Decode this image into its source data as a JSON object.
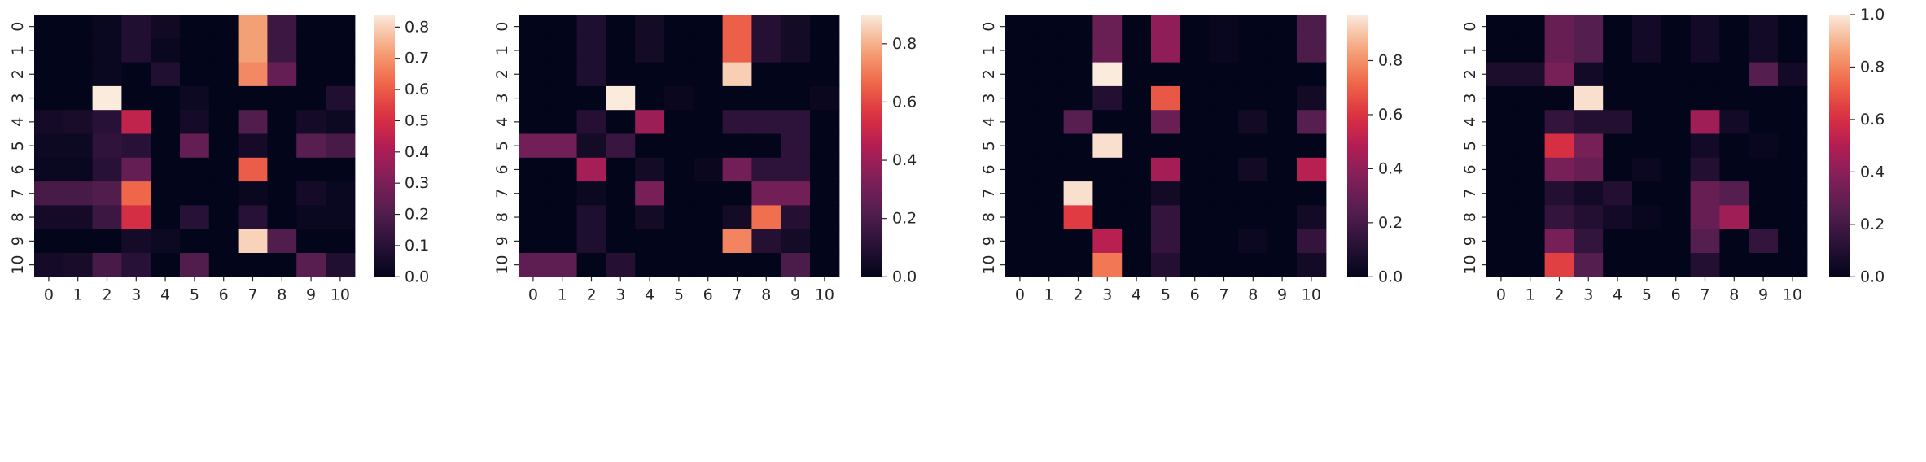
{
  "chart_data": [
    {
      "type": "heatmap",
      "x_ticks": [
        "0",
        "1",
        "2",
        "3",
        "4",
        "5",
        "6",
        "7",
        "8",
        "9",
        "10"
      ],
      "y_ticks": [
        "0",
        "1",
        "2",
        "3",
        "4",
        "5",
        "6",
        "7",
        "8",
        "9",
        "10"
      ],
      "colorbar": {
        "min": 0,
        "max": 0.84,
        "ticks": [
          "0.0",
          "0.1",
          "0.2",
          "0.3",
          "0.4",
          "0.5",
          "0.6",
          "0.7",
          "0.8"
        ],
        "tick_values": [
          0,
          0.1,
          0.2,
          0.3,
          0.4,
          0.5,
          0.6,
          0.7,
          0.8
        ]
      },
      "z": [
        [
          0,
          0,
          0.02,
          0.08,
          0.04,
          0,
          0,
          0.72,
          0.15,
          0,
          0
        ],
        [
          0,
          0,
          0.02,
          0.08,
          0.02,
          0,
          0,
          0.72,
          0.15,
          0,
          0
        ],
        [
          0,
          0,
          0.02,
          0,
          0.08,
          0,
          0,
          0.68,
          0.25,
          0,
          0
        ],
        [
          0,
          0,
          0.84,
          0,
          0,
          0.03,
          0,
          0,
          0,
          0,
          0.08
        ],
        [
          0.05,
          0.06,
          0.1,
          0.45,
          0,
          0.05,
          0,
          0.2,
          0,
          0.05,
          0.03
        ],
        [
          0.03,
          0.03,
          0.12,
          0.1,
          0,
          0.25,
          0,
          0.05,
          0,
          0.22,
          0.18
        ],
        [
          0.02,
          0.02,
          0.1,
          0.25,
          0,
          0,
          0,
          0.6,
          0,
          0,
          0
        ],
        [
          0.18,
          0.18,
          0.2,
          0.62,
          0,
          0,
          0,
          0.02,
          0,
          0.05,
          0.02
        ],
        [
          0.05,
          0.05,
          0.15,
          0.5,
          0,
          0.1,
          0,
          0.1,
          0,
          0.02,
          0.02
        ],
        [
          0,
          0,
          0,
          0.05,
          0.03,
          0,
          0,
          0.8,
          0.2,
          0,
          0
        ],
        [
          0.05,
          0.06,
          0.18,
          0.1,
          0,
          0.2,
          0,
          0,
          0,
          0.22,
          0.08
        ]
      ]
    },
    {
      "type": "heatmap",
      "x_ticks": [
        "0",
        "1",
        "2",
        "3",
        "4",
        "5",
        "6",
        "7",
        "8",
        "9",
        "10"
      ],
      "y_ticks": [
        "0",
        "1",
        "2",
        "3",
        "4",
        "5",
        "6",
        "7",
        "8",
        "9",
        "10"
      ],
      "colorbar": {
        "min": 0,
        "max": 0.9,
        "ticks": [
          "0.0",
          "0.2",
          "0.4",
          "0.6",
          "0.8"
        ],
        "tick_values": [
          0,
          0.2,
          0.4,
          0.6,
          0.8
        ]
      },
      "z": [
        [
          0,
          0,
          0.08,
          0,
          0.05,
          0,
          0,
          0.65,
          0.1,
          0.05,
          0
        ],
        [
          0,
          0,
          0.08,
          0,
          0.05,
          0,
          0,
          0.65,
          0.1,
          0.05,
          0
        ],
        [
          0,
          0,
          0.08,
          0,
          0,
          0,
          0,
          0.85,
          0,
          0,
          0
        ],
        [
          0,
          0,
          0,
          0.9,
          0,
          0.02,
          0,
          0,
          0,
          0,
          0.02
        ],
        [
          0,
          0,
          0.1,
          0,
          0.4,
          0,
          0,
          0.12,
          0.12,
          0.12,
          0
        ],
        [
          0.3,
          0.3,
          0.05,
          0.15,
          0,
          0,
          0,
          0,
          0,
          0.12,
          0
        ],
        [
          0,
          0,
          0.42,
          0,
          0.05,
          0,
          0.02,
          0.3,
          0.12,
          0.12,
          0
        ],
        [
          0,
          0,
          0.03,
          0,
          0.32,
          0,
          0,
          0,
          0.3,
          0.3,
          0
        ],
        [
          0,
          0,
          0.08,
          0,
          0.05,
          0,
          0,
          0.05,
          0.68,
          0.1,
          0
        ],
        [
          0,
          0,
          0.08,
          0,
          0,
          0,
          0,
          0.72,
          0.1,
          0.05,
          0
        ],
        [
          0.25,
          0.25,
          0,
          0.1,
          0,
          0,
          0,
          0,
          0,
          0.2,
          0
        ]
      ]
    },
    {
      "type": "heatmap",
      "x_ticks": [
        "0",
        "1",
        "2",
        "3",
        "4",
        "5",
        "6",
        "7",
        "8",
        "9",
        "10"
      ],
      "y_ticks": [
        "0",
        "1",
        "2",
        "3",
        "4",
        "5",
        "6",
        "7",
        "8",
        "9",
        "10"
      ],
      "colorbar": {
        "min": 0,
        "max": 0.97,
        "ticks": [
          "0.0",
          "0.2",
          "0.4",
          "0.6",
          "0.8"
        ],
        "tick_values": [
          0,
          0.2,
          0.4,
          0.6,
          0.8
        ]
      },
      "z": [
        [
          0,
          0,
          0,
          0.3,
          0,
          0.4,
          0,
          0.02,
          0,
          0,
          0.22
        ],
        [
          0,
          0,
          0,
          0.3,
          0,
          0.4,
          0,
          0.02,
          0,
          0,
          0.22
        ],
        [
          0,
          0,
          0,
          0.97,
          0,
          0,
          0,
          0,
          0,
          0,
          0
        ],
        [
          0,
          0,
          0,
          0.1,
          0,
          0.68,
          0,
          0,
          0,
          0,
          0.05
        ],
        [
          0,
          0,
          0.25,
          0,
          0,
          0.3,
          0,
          0,
          0.05,
          0,
          0.25
        ],
        [
          0,
          0,
          0,
          0.95,
          0,
          0,
          0,
          0,
          0,
          0,
          0
        ],
        [
          0,
          0,
          0,
          0,
          0,
          0.45,
          0,
          0,
          0.05,
          0,
          0.5
        ],
        [
          0,
          0,
          0.95,
          0,
          0,
          0.05,
          0,
          0,
          0,
          0,
          0
        ],
        [
          0,
          0,
          0.62,
          0,
          0,
          0.15,
          0,
          0,
          0,
          0,
          0.05
        ],
        [
          0,
          0,
          0,
          0.5,
          0,
          0.15,
          0,
          0,
          0.03,
          0,
          0.15
        ],
        [
          0,
          0,
          0,
          0.75,
          0,
          0.1,
          0,
          0,
          0,
          0,
          0.05
        ]
      ]
    },
    {
      "type": "heatmap",
      "x_ticks": [
        "0",
        "1",
        "2",
        "3",
        "4",
        "5",
        "6",
        "7",
        "8",
        "9",
        "10"
      ],
      "y_ticks": [
        "0",
        "1",
        "2",
        "3",
        "4",
        "5",
        "6",
        "7",
        "8",
        "9",
        "10"
      ],
      "colorbar": {
        "min": 0,
        "max": 1.0,
        "ticks": [
          "0.0",
          "0.2",
          "0.4",
          "0.6",
          "0.8",
          "1.0"
        ],
        "tick_values": [
          0,
          0.2,
          0.4,
          0.6,
          0.8,
          1.0
        ]
      },
      "z": [
        [
          0,
          0,
          0.3,
          0.25,
          0,
          0.05,
          0,
          0.05,
          0,
          0.05,
          0
        ],
        [
          0,
          0,
          0.3,
          0.25,
          0,
          0.05,
          0,
          0.05,
          0,
          0.05,
          0
        ],
        [
          0.08,
          0.08,
          0.35,
          0.05,
          0,
          0,
          0,
          0,
          0,
          0.25,
          0.05
        ],
        [
          0,
          0,
          0,
          0.98,
          0,
          0,
          0,
          0,
          0,
          0,
          0
        ],
        [
          0,
          0,
          0.15,
          0.1,
          0.1,
          0,
          0,
          0.45,
          0.05,
          0,
          0
        ],
        [
          0,
          0,
          0.6,
          0.35,
          0,
          0,
          0,
          0.05,
          0,
          0.02,
          0
        ],
        [
          0,
          0,
          0.35,
          0.3,
          0,
          0.03,
          0,
          0.1,
          0,
          0,
          0
        ],
        [
          0,
          0,
          0.1,
          0.05,
          0.1,
          0,
          0,
          0.3,
          0.25,
          0,
          0
        ],
        [
          0,
          0,
          0.15,
          0.1,
          0.05,
          0.02,
          0,
          0.3,
          0.45,
          0,
          0
        ],
        [
          0,
          0,
          0.35,
          0.15,
          0,
          0,
          0,
          0.25,
          0,
          0.15,
          0
        ],
        [
          0,
          0,
          0.65,
          0.25,
          0,
          0,
          0,
          0.1,
          0,
          0,
          0
        ]
      ]
    }
  ]
}
